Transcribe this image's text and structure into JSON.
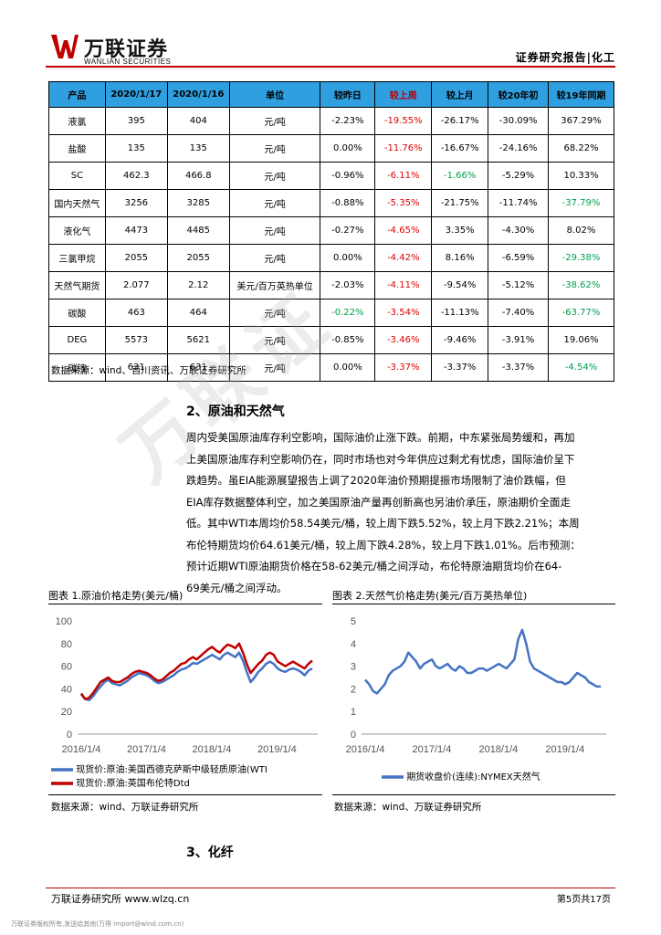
{
  "header": {
    "logo_cn": "万联证券",
    "logo_en": "WANLIAN SECURITIES",
    "right": "证券研究报告|化工"
  },
  "table": {
    "headers": [
      "产品",
      "2020/1/17",
      "2020/1/16",
      "单位",
      "较昨日",
      "较上周",
      "较上月",
      "较20年初",
      "较19年同期"
    ],
    "rows": [
      [
        "液氯",
        "395",
        "404",
        "元/吨",
        "-2.23%",
        "-19.55%",
        "-26.17%",
        "-30.09%",
        "367.29%"
      ],
      [
        "盐酸",
        "135",
        "135",
        "元/吨",
        "0.00%",
        "-11.76%",
        "-16.67%",
        "-24.16%",
        "68.22%"
      ],
      [
        "SC",
        "462.3",
        "466.8",
        "元/吨",
        "-0.96%",
        "-6.11%",
        "-1.66%",
        "-5.29%",
        "10.33%"
      ],
      [
        "国内天然气",
        "3256",
        "3285",
        "元/吨",
        "-0.88%",
        "-5.35%",
        "-21.75%",
        "-11.74%",
        "-37.79%"
      ],
      [
        "液化气",
        "4473",
        "4485",
        "元/吨",
        "-0.27%",
        "-4.65%",
        "3.35%",
        "-4.30%",
        "8.02%"
      ],
      [
        "三氯甲烷",
        "2055",
        "2055",
        "元/吨",
        "0.00%",
        "-4.42%",
        "8.16%",
        "-6.59%",
        "-29.38%"
      ],
      [
        "天然气期货",
        "2.077",
        "2.12",
        "美元/百万英热单位",
        "-2.03%",
        "-4.11%",
        "-9.54%",
        "-5.12%",
        "-38.62%"
      ],
      [
        "碳酸",
        "463",
        "464",
        "元/吨",
        "-0.22%",
        "-3.54%",
        "-11.13%",
        "-7.40%",
        "-63.77%"
      ],
      [
        "DEG",
        "5573",
        "5621",
        "元/吨",
        "-0.85%",
        "-3.46%",
        "-9.46%",
        "-3.91%",
        "19.06%"
      ],
      [
        "碳铵",
        "631",
        "631",
        "元/吨",
        "0.00%",
        "-3.37%",
        "-3.37%",
        "-3.37%",
        "-4.54%"
      ]
    ]
  },
  "source1": "数据来源：wind、百川资讯、万联证券研究所",
  "section2_title": "2、原油和天然气",
  "section2_lines": [
    "周内受美国原油库存利空影响，国际油价止涨下跌。前期，中东紧张局势缓和，再加",
    "上美国原油库存利空影响仍在，同时市场也对今年供应过剩尤有忧虑，国际油价呈下",
    "跌趋势。虽EIA能源展望报告上调了2020年油价预期提振市场限制了油价跌幅，但",
    "EIA库存数据整体利空，加之美国原油产量再创新高也另油价承压，原油期价全面走",
    "低。其中WTI本周均价58.54美元/桶，较上周下跌5.52%，较上月下跌2.21%；本周",
    "布伦特期货均价64.61美元/桶，较上周下跌4.28%，较上月下跌1.01%。后市预测：",
    "预计近期WTI原油期货价格在58-62美元/桶之间浮动，布伦特原油期货均价在64-",
    "69美元/桶之间浮动。"
  ],
  "fig1": {
    "title": "图表 1.原油价格走势(美元/桶)",
    "legend1": "现货价:原油:美国西德克萨斯中级轻质原油(WTI",
    "legend2": "现货价:原油:英国布伦特Dtd",
    "source": "数据来源：wind、万联证券研究所"
  },
  "fig2": {
    "title": "图表 2.天然气价格走势(美元/百万英热单位)",
    "legend1": "期货收盘价(连续):NYMEX天然气",
    "source": "数据来源：wind、万联证券研究所"
  },
  "chart_data": [
    {
      "type": "line",
      "title": "图表 1.原油价格走势(美元/桶)",
      "x_ticks": [
        "2016/1/4",
        "2017/1/4",
        "2018/1/4",
        "2019/1/4"
      ],
      "ylim": [
        0,
        100
      ],
      "y_ticks": [
        0,
        20,
        40,
        60,
        80,
        100
      ],
      "series": [
        {
          "name": "现货价:原油:美国西德克萨斯中级轻质原油(WTI",
          "color": "#4472c4",
          "values": [
            35,
            31,
            30,
            33,
            38,
            42,
            46,
            48,
            45,
            44,
            43,
            45,
            47,
            50,
            52,
            54,
            53,
            52,
            50,
            47,
            45,
            46,
            48,
            50,
            52,
            55,
            57,
            58,
            60,
            63,
            62,
            64,
            66,
            68,
            70,
            68,
            66,
            70,
            72,
            70,
            68,
            72,
            65,
            55,
            46,
            50,
            55,
            58,
            62,
            64,
            62,
            58,
            56,
            55,
            57,
            58,
            57,
            55,
            52,
            56,
            58
          ]
        },
        {
          "name": "现货价:原油:英国布伦特Dtd",
          "color": "#c00000",
          "values": [
            36,
            31,
            32,
            36,
            41,
            46,
            48,
            50,
            47,
            46,
            46,
            48,
            50,
            53,
            55,
            56,
            55,
            54,
            52,
            49,
            47,
            48,
            51,
            54,
            56,
            59,
            62,
            63,
            66,
            68,
            66,
            69,
            72,
            75,
            77,
            74,
            72,
            76,
            79,
            78,
            76,
            80,
            72,
            62,
            54,
            58,
            62,
            65,
            70,
            72,
            70,
            64,
            62,
            60,
            62,
            64,
            62,
            60,
            58,
            62,
            65
          ]
        }
      ]
    },
    {
      "type": "line",
      "title": "图表 2.天然气价格走势(美元/百万英热单位)",
      "x_ticks": [
        "2016/1/4",
        "2017/1/4",
        "2018/1/4",
        "2019/1/4"
      ],
      "ylim": [
        0,
        5
      ],
      "y_ticks": [
        0,
        1,
        2,
        3,
        4,
        5
      ],
      "series": [
        {
          "name": "期货收盘价(连续):NYMEX天然气",
          "color": "#4472c4",
          "values": [
            2.4,
            2.2,
            1.9,
            1.8,
            2.0,
            2.2,
            2.6,
            2.8,
            2.9,
            3.0,
            3.2,
            3.6,
            3.4,
            3.2,
            2.9,
            3.1,
            3.2,
            3.3,
            3.0,
            2.9,
            3.0,
            3.1,
            2.9,
            2.8,
            3.0,
            2.9,
            2.7,
            2.7,
            2.8,
            2.9,
            2.9,
            2.8,
            2.9,
            3.0,
            3.1,
            3.0,
            2.9,
            3.1,
            3.3,
            4.2,
            4.6,
            4.0,
            3.2,
            2.9,
            2.8,
            2.7,
            2.6,
            2.5,
            2.4,
            2.3,
            2.3,
            2.2,
            2.3,
            2.5,
            2.7,
            2.6,
            2.5,
            2.3,
            2.2,
            2.1,
            2.1
          ]
        }
      ]
    }
  ],
  "section3_title": "3、化纤",
  "footer": {
    "left": "万联证券研究所 www.wlzq.cn",
    "right": "第5页共17页",
    "notice": "万联证券版权所有,发送给其他(万得 import@wind.com.cn)"
  }
}
